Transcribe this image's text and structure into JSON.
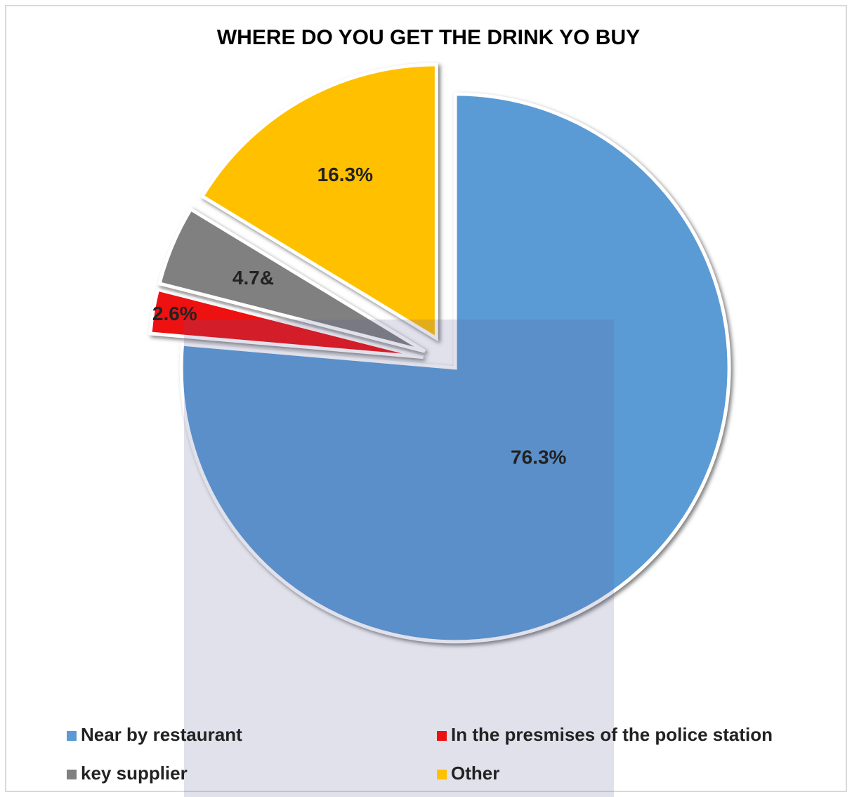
{
  "chart_data": {
    "type": "pie",
    "title": "WHERE DO YOU GET THE DRINK YO BUY",
    "categories": [
      "Near by restaurant",
      "In the presmises of the police station",
      "key supplier",
      "Other"
    ],
    "values": [
      76.3,
      2.6,
      4.7,
      16.3
    ],
    "value_labels": [
      "76.3%",
      "2.6%",
      "4.7&",
      "16.3%"
    ],
    "colors": [
      "#5b9bd5",
      "#ee1111",
      "#808080",
      "#ffc000"
    ]
  }
}
